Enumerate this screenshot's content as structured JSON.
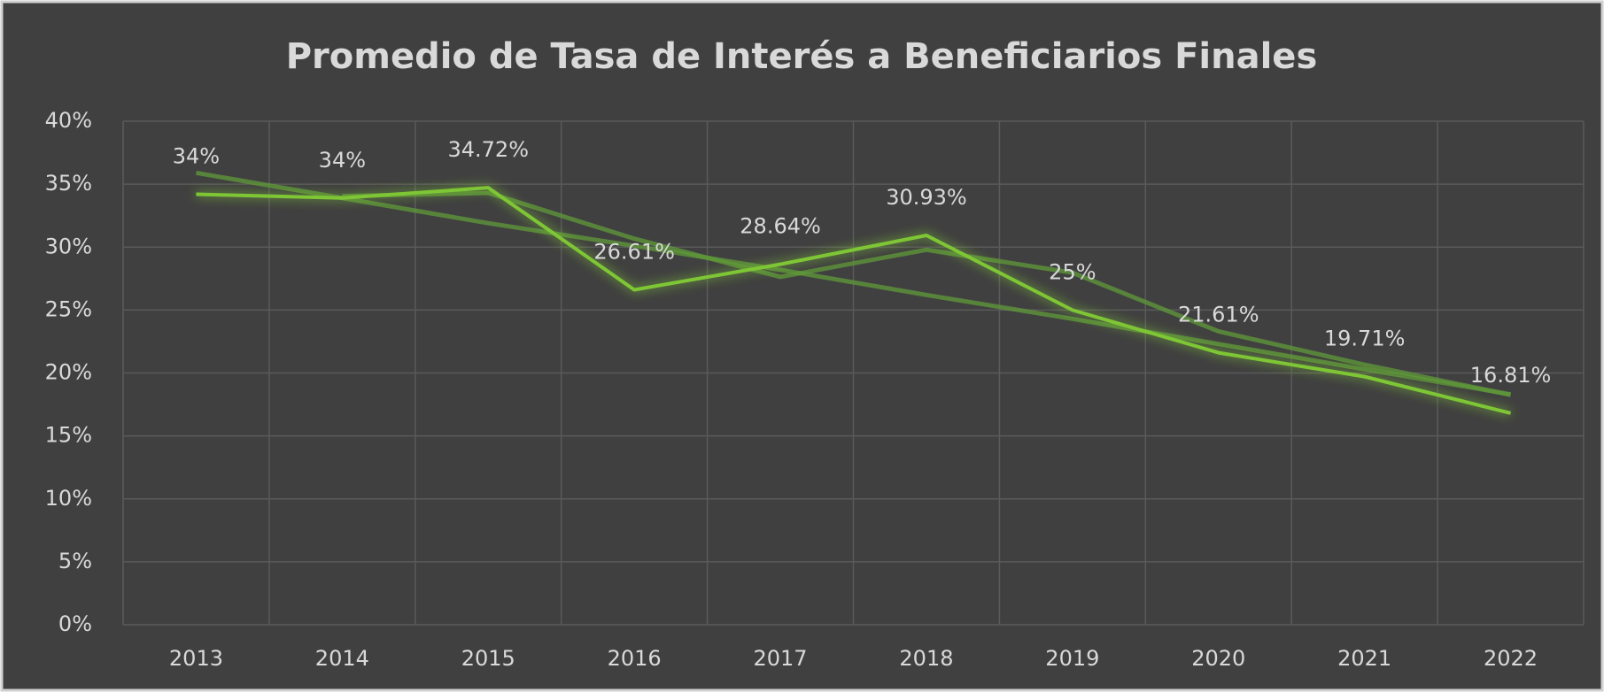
{
  "chart_data": {
    "type": "line",
    "title": "Promedio de Tasa de Interés  a Beneficiarios Finales",
    "categories": [
      "2013",
      "2014",
      "2015",
      "2016",
      "2017",
      "2018",
      "2019",
      "2020",
      "2021",
      "2022"
    ],
    "series": [
      {
        "color": "#7ec636",
        "values": [
          34.2,
          33.9,
          34.72,
          26.61,
          28.64,
          30.93,
          25,
          21.61,
          19.71,
          16.81
        ],
        "value_labels": [
          "34%",
          "34%",
          "34.72%",
          "26.61%",
          "28.64%",
          "30.93%",
          "25%",
          "21.61%",
          "19.71%",
          "16.81%"
        ]
      },
      {
        "color": "#5f9a3a",
        "values": [
          null,
          34.05,
          34.31,
          30.67,
          27.63,
          29.79,
          27.97,
          23.31,
          20.66,
          18.26
        ]
      },
      {
        "color": "#5f9a3a",
        "values": [
          35.9,
          33.9,
          31.9,
          30.1,
          28.2,
          26.2,
          24.3,
          22.3,
          20.3,
          18.3
        ]
      }
    ],
    "ylim": [
      0,
      40
    ],
    "yticks": [
      {
        "value": 0,
        "label": "0%"
      },
      {
        "value": 5,
        "label": "5%"
      },
      {
        "value": 10,
        "label": "10%"
      },
      {
        "value": 15,
        "label": "15%"
      },
      {
        "value": 20,
        "label": "20%"
      },
      {
        "value": 25,
        "label": "25%"
      },
      {
        "value": 30,
        "label": "30%"
      },
      {
        "value": 35,
        "label": "35%"
      },
      {
        "value": 40,
        "label": "40%"
      }
    ],
    "grid": true
  }
}
